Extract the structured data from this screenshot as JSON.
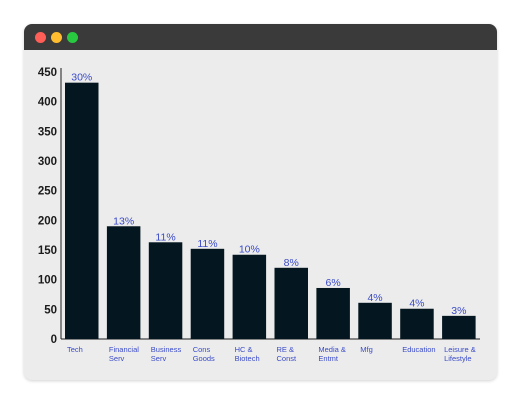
{
  "window": {
    "controls": [
      "close",
      "minimize",
      "maximize"
    ]
  },
  "colors": {
    "bar": "#04161f",
    "label": "#3a4bc8",
    "axis": "#1b1b1b",
    "window_bg": "#ececec",
    "titlebar": "#3a3a3a"
  },
  "chart_data": {
    "type": "bar",
    "title": "",
    "xlabel": "",
    "ylabel": "",
    "ylim": [
      0,
      450
    ],
    "yticks": [
      0,
      50,
      100,
      150,
      200,
      250,
      300,
      350,
      400,
      450
    ],
    "grid": false,
    "categories": [
      [
        "Tech"
      ],
      [
        "Financial",
        "Serv"
      ],
      [
        "Business",
        "Serv"
      ],
      [
        "Cons",
        "Goods"
      ],
      [
        "HC &",
        "Biotech"
      ],
      [
        "RE &",
        "Const"
      ],
      [
        "Media &",
        "Entmt"
      ],
      [
        "Mfg"
      ],
      [
        "Education"
      ],
      [
        "Leisure &",
        "Lifestyle"
      ]
    ],
    "values": [
      432,
      190,
      163,
      152,
      142,
      120,
      86,
      61,
      51,
      39
    ],
    "data_labels": [
      "30%",
      "13%",
      "11%",
      "11%",
      "10%",
      "8%",
      "6%",
      "4%",
      "4%",
      "3%"
    ]
  }
}
